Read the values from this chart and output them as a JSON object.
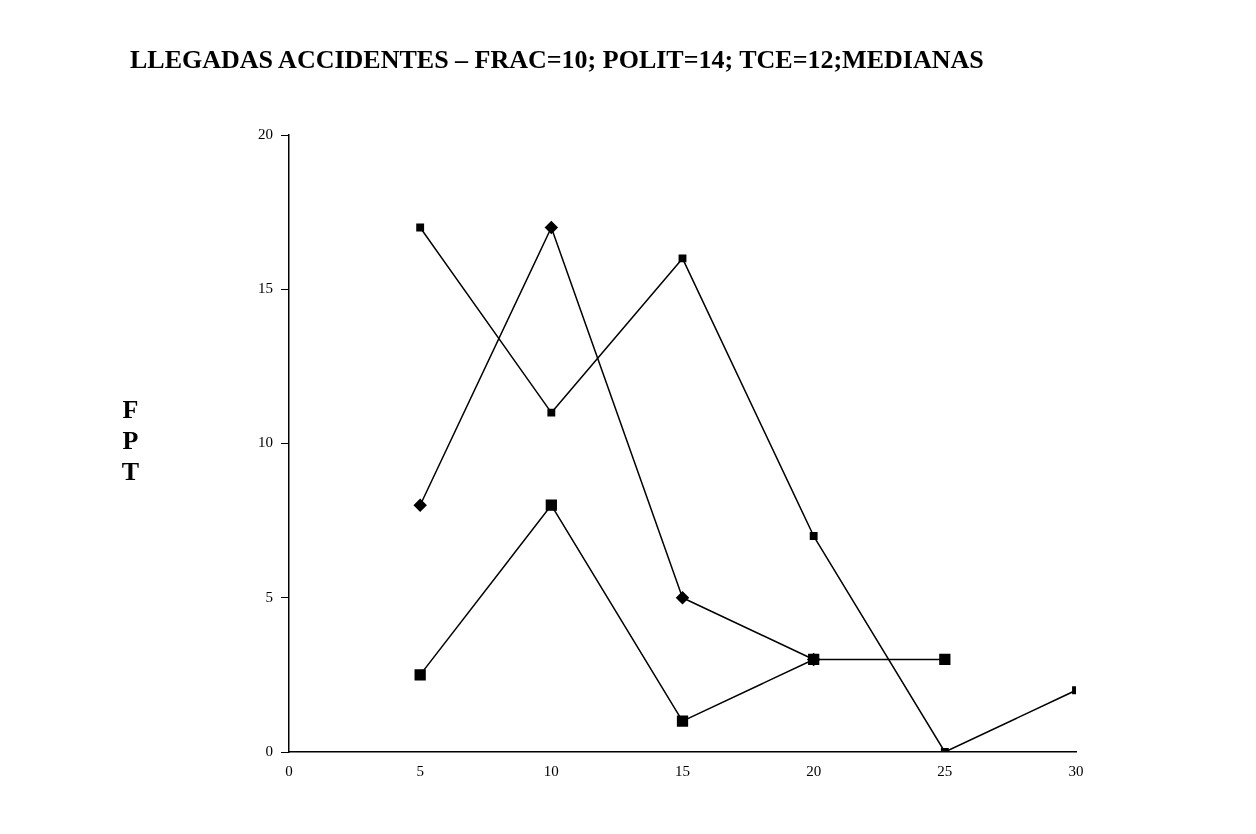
{
  "chart_data": {
    "type": "line",
    "title": "LLEGADAS ACCIDENTES – FRAC=10; POLIT=14; TCE=12;MEDIANAS",
    "ylabel": "FPT",
    "x": [
      5,
      10,
      15,
      20,
      25,
      30
    ],
    "series": [
      {
        "color": "#000000",
        "marker": "square",
        "values": [
          17,
          11,
          16,
          7,
          0,
          2
        ]
      },
      {
        "color": "#000000",
        "marker": "diamond",
        "values": [
          8,
          17,
          5,
          3,
          null,
          null
        ]
      },
      {
        "color": "#000000",
        "marker": "square",
        "values": [
          2.5,
          8,
          1,
          3,
          3,
          null
        ]
      }
    ],
    "xlim": [
      0,
      30
    ],
    "xticks": [
      0,
      5,
      10,
      15,
      20,
      25,
      30
    ],
    "ylim": [
      0,
      20
    ],
    "yticks": [
      0,
      5,
      10,
      15,
      20
    ],
    "grid": false,
    "legend": false,
    "line_style": "solid"
  }
}
